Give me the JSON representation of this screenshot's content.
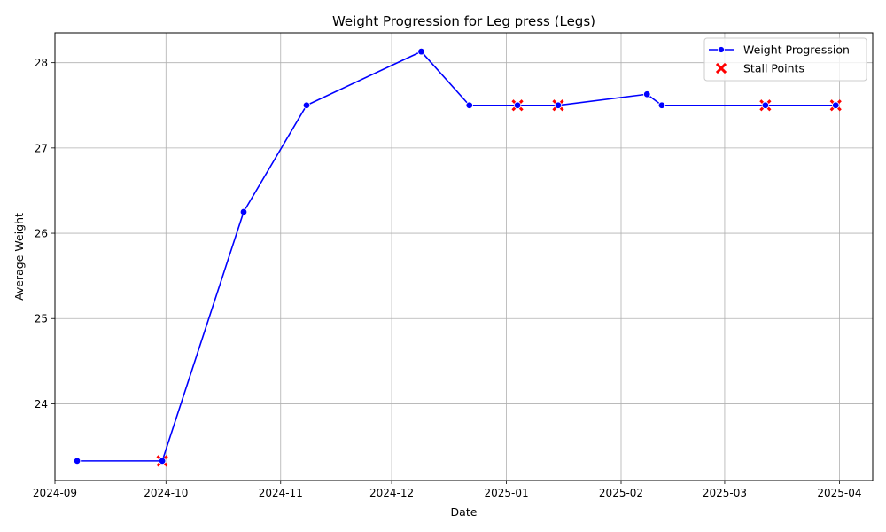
{
  "chart_data": {
    "type": "line",
    "title": "Weight Progression for Leg press (Legs)",
    "xlabel": "Date",
    "ylabel": "Average Weight",
    "x_axis_type": "date",
    "xlim": [
      "2024-09-01",
      "2025-04-10"
    ],
    "ylim": [
      23.1,
      28.35
    ],
    "x_ticks": [
      "2024-09-01",
      "2024-10-01",
      "2024-11-01",
      "2024-12-01",
      "2025-01-01",
      "2025-02-01",
      "2025-03-01",
      "2025-04-01"
    ],
    "x_tick_labels": [
      "2024-09",
      "2024-10",
      "2024-11",
      "2024-12",
      "2025-01",
      "2025-02",
      "2025-03",
      "2025-04"
    ],
    "y_ticks": [
      24,
      25,
      26,
      27,
      28
    ],
    "y_tick_labels": [
      "24",
      "25",
      "26",
      "27",
      "28"
    ],
    "grid": true,
    "legend_position": "top-right",
    "series": [
      {
        "name": "Weight Progression",
        "marker": "circle",
        "style": "line",
        "color": "#0000ff",
        "x": [
          "2024-09-07",
          "2024-09-30",
          "2024-10-22",
          "2024-11-08",
          "2024-12-09",
          "2024-12-22",
          "2025-01-04",
          "2025-01-15",
          "2025-02-08",
          "2025-02-12",
          "2025-03-12",
          "2025-03-31"
        ],
        "y": [
          23.33,
          23.33,
          26.25,
          27.5,
          28.13,
          27.5,
          27.5,
          27.5,
          27.63,
          27.5,
          27.5,
          27.5
        ]
      },
      {
        "name": "Stall Points",
        "marker": "x",
        "style": "scatter",
        "color": "#ff0000",
        "x": [
          "2024-09-30",
          "2025-01-04",
          "2025-01-15",
          "2025-03-12",
          "2025-03-31"
        ],
        "y": [
          23.33,
          27.5,
          27.5,
          27.5,
          27.5
        ]
      }
    ]
  }
}
